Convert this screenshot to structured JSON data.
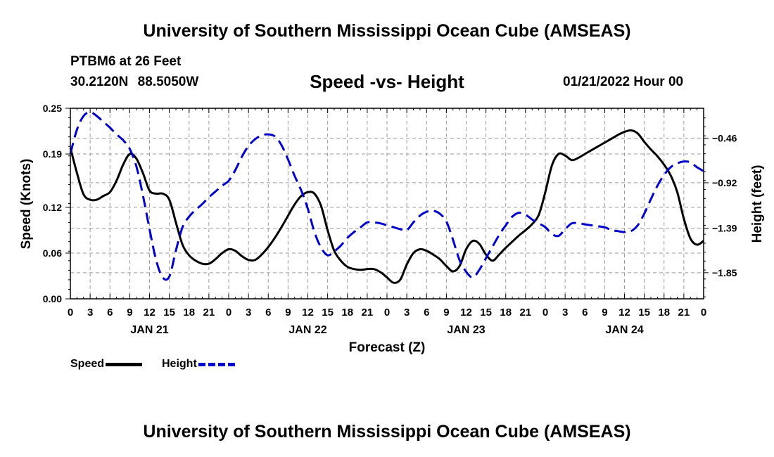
{
  "header": {
    "title": "University of Southern Mississippi Ocean Cube (AMSEAS)",
    "station": "PTBM6 at 26 Feet",
    "location": "30.2120N  88.5050W",
    "subtitle": "Speed -vs- Height",
    "datetime": "01/21/2022 Hour 00"
  },
  "footer": {
    "title": "University of Southern Mississippi Ocean Cube (AMSEAS)"
  },
  "legend": {
    "speed_label": "Speed",
    "height_label": "Height"
  },
  "colors": {
    "speed": "#000000",
    "height": "#0000cc",
    "grid": "#9a9a9a"
  },
  "chart_data": {
    "type": "line",
    "xlabel": "Forecast (Z)",
    "ylabel_left": "Speed (Knots)",
    "ylabel_right": "Height (feet)",
    "x_unit": "hours since 01/21/2022 00Z",
    "xlim": [
      0,
      96
    ],
    "ylim_left": [
      0,
      0.25
    ],
    "ylim_right": [
      -2.12,
      -0.15
    ],
    "y_ticks_left": [
      0.0,
      0.06,
      0.12,
      0.19,
      0.25
    ],
    "y_tick_labels_left": [
      "0.00",
      "0.06",
      "0.12",
      "0.19",
      "0.25"
    ],
    "y_ticks_right": [
      -1.85,
      -1.39,
      -0.92,
      -0.46
    ],
    "y_tick_labels_right": [
      "-1.85",
      "-1.39",
      "-0.92",
      "-0.46"
    ],
    "x_ticks": [
      0,
      3,
      6,
      9,
      12,
      15,
      18,
      21,
      24,
      27,
      30,
      33,
      36,
      39,
      42,
      45,
      48,
      51,
      54,
      57,
      60,
      63,
      66,
      69,
      72,
      75,
      78,
      81,
      84,
      87,
      90,
      93,
      96
    ],
    "x_tick_labels": [
      "0",
      "3",
      "6",
      "9",
      "12",
      "15",
      "18",
      "21",
      "0",
      "3",
      "6",
      "9",
      "12",
      "15",
      "18",
      "21",
      "0",
      "3",
      "6",
      "9",
      "12",
      "15",
      "18",
      "21",
      "0",
      "3",
      "6",
      "9",
      "12",
      "15",
      "18",
      "21",
      "0"
    ],
    "day_labels": [
      {
        "x": 12,
        "label": "JAN 21"
      },
      {
        "x": 36,
        "label": "JAN 22"
      },
      {
        "x": 60,
        "label": "JAN 23"
      },
      {
        "x": 84,
        "label": "JAN 24"
      }
    ],
    "grid": true,
    "series": [
      {
        "name": "Speed",
        "axis": "left",
        "style": "solid",
        "x": [
          0,
          1,
          2,
          3,
          4,
          5,
          6,
          7,
          8,
          9,
          10,
          11,
          12,
          13,
          14,
          15,
          16,
          17,
          18,
          19,
          20,
          21,
          22,
          23,
          24,
          25,
          26,
          27,
          28,
          29,
          30,
          31,
          32,
          33,
          34,
          35,
          36,
          37,
          38,
          39,
          40,
          41,
          42,
          43,
          44,
          45,
          46,
          47,
          48,
          49,
          50,
          51,
          52,
          53,
          54,
          55,
          56,
          57,
          58,
          59,
          60,
          61,
          62,
          63,
          64,
          65,
          66,
          67,
          68,
          69,
          70,
          71,
          72,
          73,
          74,
          75,
          76,
          77,
          78,
          79,
          80,
          81,
          82,
          83,
          84,
          85,
          86,
          87,
          88,
          89,
          90,
          91,
          92,
          93,
          94,
          95,
          96
        ],
        "values": [
          0.198,
          0.165,
          0.137,
          0.13,
          0.13,
          0.135,
          0.14,
          0.155,
          0.176,
          0.19,
          0.184,
          0.165,
          0.142,
          0.138,
          0.138,
          0.13,
          0.1,
          0.071,
          0.057,
          0.05,
          0.046,
          0.046,
          0.052,
          0.06,
          0.065,
          0.063,
          0.056,
          0.051,
          0.051,
          0.058,
          0.068,
          0.08,
          0.094,
          0.109,
          0.124,
          0.135,
          0.14,
          0.138,
          0.122,
          0.09,
          0.063,
          0.05,
          0.042,
          0.039,
          0.038,
          0.039,
          0.039,
          0.035,
          0.028,
          0.021,
          0.025,
          0.045,
          0.06,
          0.065,
          0.063,
          0.058,
          0.052,
          0.043,
          0.036,
          0.043,
          0.065,
          0.076,
          0.072,
          0.058,
          0.05,
          0.058,
          0.067,
          0.075,
          0.083,
          0.09,
          0.098,
          0.11,
          0.14,
          0.175,
          0.19,
          0.188,
          0.182,
          0.185,
          0.19,
          0.195,
          0.2,
          0.205,
          0.21,
          0.215,
          0.219,
          0.221,
          0.217,
          0.206,
          0.196,
          0.187,
          0.176,
          0.162,
          0.14,
          0.105,
          0.079,
          0.071,
          0.076
        ]
      },
      {
        "name": "Height",
        "axis": "right",
        "style": "dashed",
        "x": [
          0,
          1,
          2,
          3,
          4,
          5,
          6,
          7,
          8,
          9,
          10,
          11,
          12,
          13,
          14,
          15,
          16,
          17,
          18,
          19,
          20,
          21,
          22,
          23,
          24,
          25,
          26,
          27,
          28,
          29,
          30,
          31,
          32,
          33,
          34,
          35,
          36,
          37,
          38,
          39,
          40,
          41,
          42,
          43,
          44,
          45,
          46,
          47,
          48,
          49,
          50,
          51,
          52,
          53,
          54,
          55,
          56,
          57,
          58,
          59,
          60,
          61,
          62,
          63,
          64,
          65,
          66,
          67,
          68,
          69,
          70,
          71,
          72,
          73,
          74,
          75,
          76,
          77,
          78,
          79,
          80,
          81,
          82,
          83,
          84,
          85,
          86,
          87,
          88,
          89,
          90,
          91,
          92,
          93,
          94,
          95,
          96
        ],
        "values": [
          -0.62,
          -0.37,
          -0.23,
          -0.19,
          -0.23,
          -0.29,
          -0.35,
          -0.42,
          -0.48,
          -0.57,
          -0.75,
          -1.05,
          -1.4,
          -1.72,
          -1.9,
          -1.89,
          -1.62,
          -1.38,
          -1.27,
          -1.2,
          -1.14,
          -1.07,
          -1.01,
          -0.95,
          -0.9,
          -0.79,
          -0.65,
          -0.54,
          -0.47,
          -0.43,
          -0.42,
          -0.44,
          -0.53,
          -0.68,
          -0.85,
          -1.0,
          -1.19,
          -1.43,
          -1.59,
          -1.67,
          -1.63,
          -1.57,
          -1.49,
          -1.43,
          -1.38,
          -1.33,
          -1.33,
          -1.34,
          -1.36,
          -1.38,
          -1.4,
          -1.41,
          -1.33,
          -1.26,
          -1.22,
          -1.21,
          -1.24,
          -1.32,
          -1.51,
          -1.72,
          -1.84,
          -1.9,
          -1.82,
          -1.7,
          -1.58,
          -1.46,
          -1.36,
          -1.27,
          -1.23,
          -1.25,
          -1.3,
          -1.34,
          -1.38,
          -1.45,
          -1.47,
          -1.4,
          -1.34,
          -1.34,
          -1.35,
          -1.36,
          -1.37,
          -1.38,
          -1.41,
          -1.42,
          -1.43,
          -1.42,
          -1.36,
          -1.24,
          -1.09,
          -0.95,
          -0.84,
          -0.76,
          -0.72,
          -0.7,
          -0.71,
          -0.76,
          -0.8
        ]
      }
    ]
  }
}
